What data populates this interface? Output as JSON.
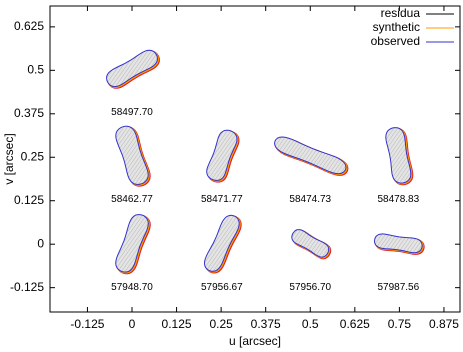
{
  "chart_data": {
    "type": "silhouette",
    "xlabel": "u [arcsec]",
    "ylabel": "v [arcsec]",
    "xlim": [
      -0.23,
      0.92
    ],
    "ylim": [
      -0.195,
      0.685
    ],
    "xticks": [
      -0.125,
      0,
      0.125,
      0.25,
      0.375,
      0.5,
      0.625,
      0.75,
      0.875
    ],
    "yticks": [
      -0.125,
      0,
      0.125,
      0.25,
      0.375,
      0.5,
      0.625
    ],
    "legend": [
      {
        "name": "residua",
        "color": "#000000"
      },
      {
        "name": "synthetic",
        "color": "#ff9900"
      },
      {
        "name": "observed",
        "color": "#3333cc"
      }
    ],
    "legend_position": "upper right",
    "annotations": [
      {
        "text": "58497.70",
        "x": 0,
        "y": 0.379
      },
      {
        "text": "58462.77",
        "x": 0,
        "y": 0.129
      },
      {
        "text": "58471.77",
        "x": 0.252,
        "y": 0.129
      },
      {
        "text": "58474.73",
        "x": 0.5,
        "y": 0.129
      },
      {
        "text": "58478.83",
        "x": 0.747,
        "y": 0.129
      },
      {
        "text": "57948.70",
        "x": 0,
        "y": -0.124
      },
      {
        "text": "57956.67",
        "x": 0.252,
        "y": -0.124
      },
      {
        "text": "57956.70",
        "x": 0.5,
        "y": -0.124
      },
      {
        "text": "57987.56",
        "x": 0.747,
        "y": -0.124
      }
    ]
  }
}
